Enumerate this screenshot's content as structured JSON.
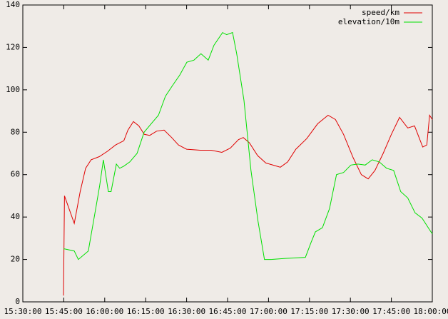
{
  "chart_data": {
    "type": "line",
    "xticks": [
      "15:30:00",
      "15:45:00",
      "16:00:00",
      "16:15:00",
      "16:30:00",
      "16:45:00",
      "17:00:00",
      "17:15:00",
      "17:30:00",
      "17:45:00",
      "18:00:00"
    ],
    "xlim": [
      "15:30:00",
      "18:00:00"
    ],
    "ylim": [
      0,
      140
    ],
    "yticks": [
      0,
      20,
      40,
      60,
      80,
      100,
      120,
      140
    ],
    "legend": "upper right",
    "series": [
      {
        "name": "speed/km",
        "color": "#e00000",
        "x": [
          "15:44:54",
          "15:45:15",
          "15:48:50",
          "15:51:00",
          "15:53:00",
          "15:55:00",
          "15:58:00",
          "16:01:00",
          "16:04:00",
          "16:07:00",
          "16:08:30",
          "16:10:30",
          "16:12:30",
          "16:14:30",
          "16:16:30",
          "16:19:00",
          "16:21:45",
          "16:24:30",
          "16:27:00",
          "16:30:00",
          "16:35:00",
          "16:39:00",
          "16:42:55",
          "16:46:00",
          "16:49:00",
          "16:50:45",
          "16:53:00",
          "16:56:00",
          "16:59:00",
          "17:04:20",
          "17:07:00",
          "17:10:00",
          "17:14:00",
          "17:18:00",
          "17:21:50",
          "17:24:30",
          "17:27:30",
          "17:31:00",
          "17:34:00",
          "17:36:30",
          "17:39:00",
          "17:42:00",
          "17:45:00",
          "17:48:00",
          "17:51:00",
          "17:53:30",
          "17:56:30",
          "17:58:00",
          "17:59:00",
          "18:00:00"
        ],
        "values": [
          3,
          50,
          37,
          52,
          63,
          67,
          68.5,
          71,
          74,
          76,
          81,
          85,
          83,
          79,
          78.5,
          80.5,
          81,
          77.5,
          74,
          72,
          71.5,
          71.5,
          70.5,
          72.5,
          76.5,
          77.5,
          75,
          69,
          65.5,
          63.5,
          66,
          72,
          77,
          84,
          88,
          86,
          79,
          68,
          60,
          58,
          62,
          70,
          79,
          87,
          82,
          83,
          73,
          74,
          88,
          86
        ]
      },
      {
        "name": "elevation/10m",
        "color": "#00e000",
        "x": [
          "15:44:54",
          "15:45:15",
          "15:48:50",
          "15:50:20",
          "15:54:00",
          "15:56:50",
          "15:58:10",
          "15:59:30",
          "16:01:20",
          "16:02:20",
          "16:04:15",
          "16:05:30",
          "16:07:00",
          "16:09:10",
          "16:11:50",
          "16:14:25",
          "16:17:00",
          "16:19:40",
          "16:22:15",
          "16:24:50",
          "16:27:30",
          "16:30:05",
          "16:32:40",
          "16:35:15",
          "16:37:55",
          "16:40:00",
          "16:43:10",
          "16:44:40",
          "16:46:50",
          "16:48:20",
          "16:51:00",
          "16:53:35",
          "16:56:10",
          "16:58:30",
          "17:00:55",
          "17:06:10",
          "17:13:30",
          "17:15:35",
          "17:17:10",
          "17:19:45",
          "17:22:20",
          "17:24:55",
          "17:27:30",
          "17:30:10",
          "17:32:45",
          "17:35:25",
          "17:38:00",
          "17:40:35",
          "17:43:15",
          "17:45:50",
          "17:48:25",
          "17:51:00",
          "17:53:40",
          "17:56:15",
          "18:00:00"
        ],
        "values": [
          25,
          25,
          24,
          20,
          24,
          45,
          55,
          67,
          52,
          52,
          65,
          63,
          64,
          66,
          70,
          80,
          84,
          88,
          97,
          102,
          107,
          113,
          114,
          117,
          114,
          121,
          127,
          126,
          127,
          117,
          95,
          62,
          38,
          20,
          20,
          20.5,
          21,
          28,
          33,
          35,
          44,
          60,
          61,
          64.5,
          65,
          64.5,
          67,
          66,
          63,
          62,
          52,
          49,
          42,
          39.5,
          32
        ]
      }
    ]
  }
}
